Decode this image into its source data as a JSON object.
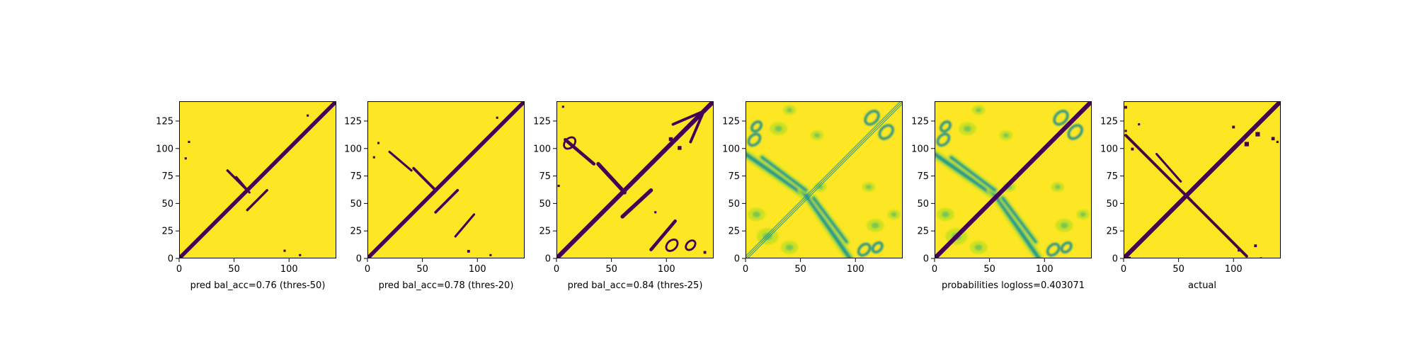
{
  "colors": {
    "background": "#fde725",
    "contact": "#440154",
    "mid_high": "#35b779",
    "mid_low": "#21918c",
    "pale": "#c8e020"
  },
  "chart_data": [
    {
      "type": "heatmap",
      "title": "",
      "xlabel": "pred bal_acc=0.76 (thres-50)",
      "ylabel": "",
      "xlim": [
        0,
        143
      ],
      "ylim": [
        143,
        0
      ],
      "xticks": [
        0,
        50,
        100
      ],
      "yticks": [
        0,
        25,
        50,
        75,
        100,
        125
      ],
      "style": "binary",
      "features": [
        {
          "kind": "diagonal",
          "width": 3.5
        },
        {
          "kind": "band",
          "from": [
            44,
            80
          ],
          "to": [
            62,
            62
          ],
          "width": 2.2
        },
        {
          "kind": "band",
          "from": [
            62,
            44
          ],
          "to": [
            80,
            62
          ],
          "width": 2.2
        },
        {
          "kind": "band",
          "from": [
            52,
            74
          ],
          "to": [
            64,
            60
          ],
          "width": 2
        },
        {
          "kind": "blob",
          "at": [
            96,
            9
          ],
          "size": 2
        },
        {
          "kind": "blob",
          "at": [
            110,
            5
          ],
          "size": 2
        },
        {
          "kind": "blob",
          "at": [
            6,
            93
          ],
          "size": 2
        },
        {
          "kind": "blob",
          "at": [
            9,
            108
          ],
          "size": 2
        },
        {
          "kind": "blob",
          "at": [
            117,
            132
          ],
          "size": 2
        }
      ]
    },
    {
      "type": "heatmap",
      "title": "",
      "xlabel": "pred bal_acc=0.78 (thres-20)",
      "ylabel": "",
      "xlim": [
        0,
        143
      ],
      "ylim": [
        143,
        0
      ],
      "xticks": [
        0,
        50,
        100
      ],
      "yticks": [
        0,
        25,
        50,
        75,
        100,
        125
      ],
      "style": "binary",
      "features": [
        {
          "kind": "diagonal",
          "width": 3.5
        },
        {
          "kind": "band",
          "from": [
            42,
            82
          ],
          "to": [
            62,
            62
          ],
          "width": 2.4
        },
        {
          "kind": "band",
          "from": [
            62,
            42
          ],
          "to": [
            82,
            62
          ],
          "width": 2.4
        },
        {
          "kind": "band",
          "from": [
            20,
            97
          ],
          "to": [
            40,
            80
          ],
          "width": 2
        },
        {
          "kind": "band",
          "from": [
            80,
            20
          ],
          "to": [
            97,
            40
          ],
          "width": 2
        },
        {
          "kind": "blob",
          "at": [
            92,
            9
          ],
          "size": 2.5
        },
        {
          "kind": "blob",
          "at": [
            112,
            5
          ],
          "size": 2
        },
        {
          "kind": "blob",
          "at": [
            6,
            94
          ],
          "size": 2
        },
        {
          "kind": "blob",
          "at": [
            10,
            107
          ],
          "size": 2
        },
        {
          "kind": "blob",
          "at": [
            118,
            130
          ],
          "size": 2
        }
      ]
    },
    {
      "type": "heatmap",
      "title": "",
      "xlabel": "pred bal_acc=0.84 (thres-25)",
      "ylabel": "",
      "xlim": [
        0,
        143
      ],
      "ylim": [
        143,
        0
      ],
      "xticks": [
        0,
        50,
        100
      ],
      "yticks": [
        0,
        25,
        50,
        75,
        100,
        125
      ],
      "style": "binary",
      "features": [
        {
          "kind": "diagonal",
          "width": 4
        },
        {
          "kind": "band",
          "from": [
            38,
            86
          ],
          "to": [
            62,
            60
          ],
          "width": 3.5
        },
        {
          "kind": "band",
          "from": [
            60,
            38
          ],
          "to": [
            86,
            62
          ],
          "width": 3.5
        },
        {
          "kind": "band",
          "from": [
            8,
            108
          ],
          "to": [
            34,
            86
          ],
          "width": 3
        },
        {
          "kind": "band",
          "from": [
            86,
            8
          ],
          "to": [
            108,
            34
          ],
          "width": 3
        },
        {
          "kind": "ring",
          "at": [
            12,
            105
          ],
          "size": 6
        },
        {
          "kind": "ring",
          "at": [
            105,
            12
          ],
          "size": 6
        },
        {
          "kind": "ring",
          "at": [
            122,
            12
          ],
          "size": 5
        },
        {
          "kind": "blob",
          "at": [
            135,
            8
          ],
          "size": 2.5
        },
        {
          "kind": "blob",
          "at": [
            6,
            140
          ],
          "size": 2
        },
        {
          "kind": "blob",
          "at": [
            104,
            112
          ],
          "size": 3.5
        },
        {
          "kind": "blob",
          "at": [
            112,
            104
          ],
          "size": 3.5
        },
        {
          "kind": "band",
          "from": [
            106,
            122
          ],
          "to": [
            134,
            134
          ],
          "width": 2.5
        },
        {
          "kind": "band",
          "from": [
            122,
            106
          ],
          "to": [
            134,
            134
          ],
          "width": 2.5
        },
        {
          "kind": "blob",
          "at": [
            2,
            68
          ],
          "size": 2
        },
        {
          "kind": "blob",
          "at": [
            90,
            44
          ],
          "size": 2
        }
      ]
    },
    {
      "type": "heatmap",
      "title": "",
      "xlabel": "",
      "ylabel": "",
      "xlim": [
        0,
        143
      ],
      "ylim": [
        143,
        0
      ],
      "xticks": [
        0,
        50,
        100
      ],
      "yticks": [
        0,
        25,
        50,
        75,
        100,
        125
      ],
      "style": "continuous",
      "features": [
        {
          "kind": "diag_lines",
          "offsets": [
            -2,
            0,
            2
          ],
          "width": 0.7
        },
        {
          "kind": "band",
          "from": [
            0,
            95
          ],
          "to": [
            62,
            52
          ],
          "width": 3
        },
        {
          "kind": "band",
          "from": [
            52,
            62
          ],
          "to": [
            95,
            0
          ],
          "width": 3
        },
        {
          "kind": "band",
          "from": [
            15,
            92
          ],
          "to": [
            55,
            62
          ],
          "width": 2.2
        },
        {
          "kind": "band",
          "from": [
            62,
            55
          ],
          "to": [
            92,
            15
          ],
          "width": 2.2
        },
        {
          "kind": "ring",
          "at": [
            8,
            108
          ],
          "size": 6
        },
        {
          "kind": "ring",
          "at": [
            108,
            8
          ],
          "size": 6
        },
        {
          "kind": "ring",
          "at": [
            120,
            10
          ],
          "size": 5
        },
        {
          "kind": "ring",
          "at": [
            10,
            120
          ],
          "size": 5
        },
        {
          "kind": "ring",
          "at": [
            115,
            128
          ],
          "size": 7
        },
        {
          "kind": "ring",
          "at": [
            128,
            115
          ],
          "size": 7
        },
        {
          "kind": "cloud",
          "at": [
            20,
            20
          ],
          "size": 10
        },
        {
          "kind": "cloud",
          "at": [
            40,
            10
          ],
          "size": 8
        },
        {
          "kind": "cloud",
          "at": [
            10,
            40
          ],
          "size": 8
        },
        {
          "kind": "cloud",
          "at": [
            68,
            65
          ],
          "size": 6
        },
        {
          "kind": "cloud",
          "at": [
            30,
            118
          ],
          "size": 8
        },
        {
          "kind": "cloud",
          "at": [
            118,
            30
          ],
          "size": 8
        },
        {
          "kind": "cloud",
          "at": [
            65,
            112
          ],
          "size": 6
        },
        {
          "kind": "cloud",
          "at": [
            112,
            65
          ],
          "size": 6
        },
        {
          "kind": "cloud",
          "at": [
            135,
            40
          ],
          "size": 6
        },
        {
          "kind": "cloud",
          "at": [
            40,
            135
          ],
          "size": 6
        }
      ]
    },
    {
      "type": "heatmap",
      "title": "",
      "xlabel": "probabilities logloss=0.403071",
      "ylabel": "",
      "xlim": [
        0,
        143
      ],
      "ylim": [
        143,
        0
      ],
      "xticks": [
        0,
        50,
        100
      ],
      "yticks": [
        0,
        25,
        50,
        75,
        100,
        125
      ],
      "style": "continuous",
      "features": [
        {
          "kind": "diagonal",
          "width": 4
        },
        {
          "kind": "band",
          "from": [
            0,
            95
          ],
          "to": [
            62,
            52
          ],
          "width": 3
        },
        {
          "kind": "band",
          "from": [
            52,
            62
          ],
          "to": [
            95,
            0
          ],
          "width": 3
        },
        {
          "kind": "band",
          "from": [
            15,
            92
          ],
          "to": [
            55,
            62
          ],
          "width": 2.2
        },
        {
          "kind": "band",
          "from": [
            62,
            55
          ],
          "to": [
            92,
            15
          ],
          "width": 2.2
        },
        {
          "kind": "ring",
          "at": [
            8,
            108
          ],
          "size": 6
        },
        {
          "kind": "ring",
          "at": [
            108,
            8
          ],
          "size": 6
        },
        {
          "kind": "ring",
          "at": [
            120,
            10
          ],
          "size": 5
        },
        {
          "kind": "ring",
          "at": [
            10,
            120
          ],
          "size": 5
        },
        {
          "kind": "ring",
          "at": [
            115,
            128
          ],
          "size": 7
        },
        {
          "kind": "ring",
          "at": [
            128,
            115
          ],
          "size": 7
        },
        {
          "kind": "cloud",
          "at": [
            20,
            20
          ],
          "size": 10
        },
        {
          "kind": "cloud",
          "at": [
            40,
            10
          ],
          "size": 8
        },
        {
          "kind": "cloud",
          "at": [
            10,
            40
          ],
          "size": 8
        },
        {
          "kind": "cloud",
          "at": [
            68,
            65
          ],
          "size": 6
        },
        {
          "kind": "cloud",
          "at": [
            30,
            118
          ],
          "size": 8
        },
        {
          "kind": "cloud",
          "at": [
            118,
            30
          ],
          "size": 8
        },
        {
          "kind": "cloud",
          "at": [
            65,
            112
          ],
          "size": 6
        },
        {
          "kind": "cloud",
          "at": [
            112,
            65
          ],
          "size": 6
        },
        {
          "kind": "cloud",
          "at": [
            135,
            40
          ],
          "size": 6
        },
        {
          "kind": "cloud",
          "at": [
            40,
            135
          ],
          "size": 6
        }
      ]
    },
    {
      "type": "heatmap",
      "title": "",
      "xlabel": "actual",
      "ylabel": "",
      "xlim": [
        0,
        143
      ],
      "ylim": [
        143,
        0
      ],
      "xticks": [
        0,
        50,
        100
      ],
      "yticks": [
        0,
        25,
        50,
        75,
        100,
        125
      ],
      "style": "binary",
      "features": [
        {
          "kind": "diagonal",
          "width": 4
        },
        {
          "kind": "band",
          "from": [
            2,
            112
          ],
          "to": [
            62,
            52
          ],
          "width": 2.5
        },
        {
          "kind": "band",
          "from": [
            52,
            62
          ],
          "to": [
            112,
            2
          ],
          "width": 2.5
        },
        {
          "kind": "band",
          "from": [
            30,
            95
          ],
          "to": [
            52,
            70
          ],
          "width": 2
        },
        {
          "kind": "blob",
          "at": [
            4,
            4
          ],
          "size": 5
        },
        {
          "kind": "blob",
          "at": [
            105,
            10
          ],
          "size": 2.5
        },
        {
          "kind": "blob",
          "at": [
            120,
            14
          ],
          "size": 2.5
        },
        {
          "kind": "blob",
          "at": [
            125,
            2
          ],
          "size": 2
        },
        {
          "kind": "blob",
          "at": [
            142,
            1
          ],
          "size": 2
        },
        {
          "kind": "blob",
          "at": [
            8,
            102
          ],
          "size": 2.5
        },
        {
          "kind": "blob",
          "at": [
            2,
            118
          ],
          "size": 2
        },
        {
          "kind": "blob",
          "at": [
            14,
            124
          ],
          "size": 2
        },
        {
          "kind": "blob",
          "at": [
            112,
            108
          ],
          "size": 4
        },
        {
          "kind": "blob",
          "at": [
            122,
            117
          ],
          "size": 4
        },
        {
          "kind": "blob",
          "at": [
            136,
            112
          ],
          "size": 3
        },
        {
          "kind": "blob",
          "at": [
            140,
            108
          ],
          "size": 2
        },
        {
          "kind": "blob",
          "at": [
            100,
            122
          ],
          "size": 2.5
        },
        {
          "kind": "blob",
          "at": [
            2,
            140
          ],
          "size": 2.5
        }
      ]
    }
  ]
}
